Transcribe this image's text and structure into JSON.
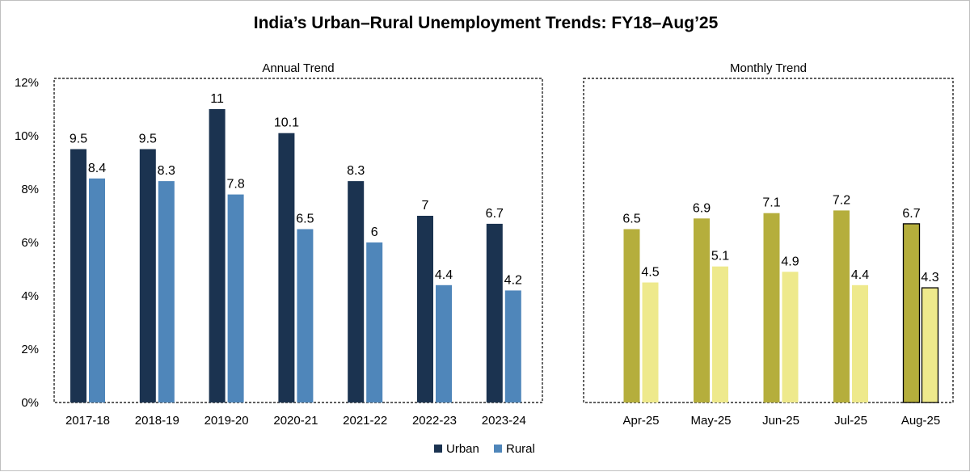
{
  "title": "India’s Urban–Rural Unemployment Trends: FY18–Aug’25",
  "chart_data": [
    {
      "type": "bar",
      "panel_label": "Annual Trend",
      "categories": [
        "2017-18",
        "2018-19",
        "2019-20",
        "2020-21",
        "2021-22",
        "2022-23",
        "2023-24"
      ],
      "series": [
        {
          "name": "Urban",
          "color": "#1b3350",
          "values": [
            9.5,
            9.5,
            11,
            10.1,
            8.3,
            7,
            6.7
          ]
        },
        {
          "name": "Rural",
          "color": "#4f86ba",
          "values": [
            8.4,
            8.3,
            7.8,
            6.5,
            6,
            4.4,
            4.2
          ]
        }
      ],
      "y_ticks": [
        "0%",
        "2%",
        "4%",
        "6%",
        "8%",
        "10%",
        "12%"
      ],
      "ylim": [
        0,
        12
      ],
      "grid": false,
      "legend": "bottom"
    },
    {
      "type": "bar",
      "panel_label": "Monthly Trend",
      "categories": [
        "Apr-25",
        "May-25",
        "Jun-25",
        "Jul-25",
        "Aug-25"
      ],
      "series": [
        {
          "name": "Urban",
          "color": "#b5ae3c",
          "values": [
            6.5,
            6.9,
            7.1,
            7.2,
            6.7
          ]
        },
        {
          "name": "Rural",
          "color": "#eee98c",
          "values": [
            4.5,
            5.1,
            4.9,
            4.4,
            4.3
          ]
        }
      ],
      "highlight_category": "Aug-25",
      "ylim": [
        0,
        12
      ],
      "grid": false
    }
  ],
  "legend": {
    "items": [
      {
        "name": "Urban",
        "color": "#1b3350"
      },
      {
        "name": "Rural",
        "color": "#4f86ba"
      }
    ]
  }
}
